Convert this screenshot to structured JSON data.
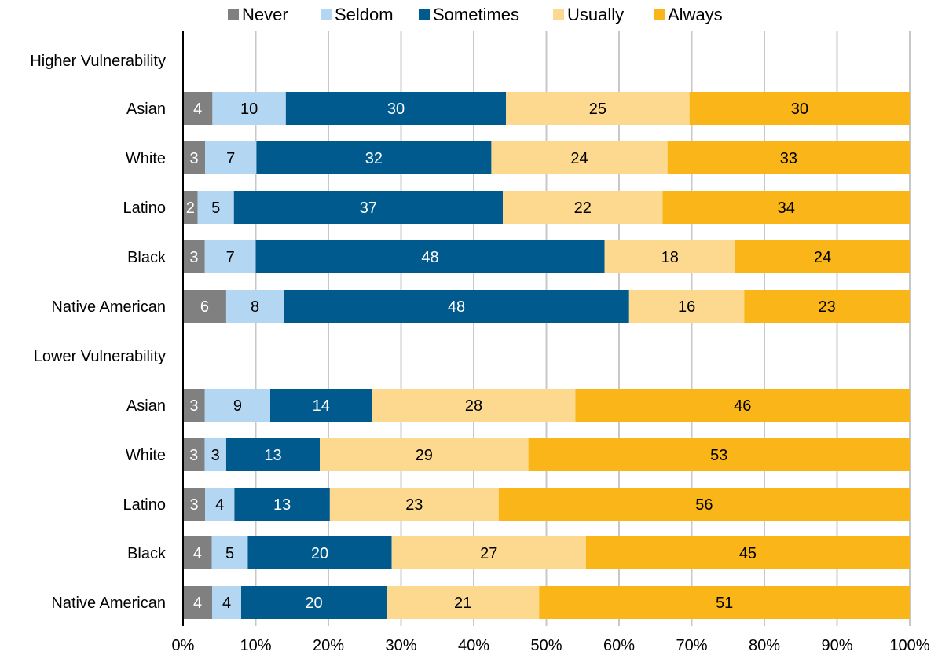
{
  "chart_data": {
    "type": "bar",
    "orientation": "horizontal",
    "stacked": true,
    "normalized": true,
    "legend_position": "top",
    "grid": true,
    "xlim": [
      0,
      100
    ],
    "x_ticks": [
      "0%",
      "10%",
      "20%",
      "30%",
      "40%",
      "50%",
      "60%",
      "70%",
      "80%",
      "90%",
      "100%"
    ],
    "groups": [
      "Higher Vulnerability",
      "Lower Vulnerability"
    ],
    "categories": [
      "Asian",
      "White",
      "Latino",
      "Black",
      "Native American",
      "Asian",
      "White",
      "Latino",
      "Black",
      "Native American"
    ],
    "series": [
      {
        "name": "Never",
        "color": "#808080",
        "label_color": "#ffffff",
        "values": [
          4,
          3,
          2,
          3,
          6,
          3,
          3,
          3,
          4,
          4
        ]
      },
      {
        "name": "Seldom",
        "color": "#b3d7f2",
        "label_color": "#000000",
        "values": [
          10,
          7,
          5,
          7,
          8,
          9,
          3,
          4,
          5,
          4
        ]
      },
      {
        "name": "Sometimes",
        "color": "#005a8e",
        "label_color": "#ffffff",
        "values": [
          30,
          32,
          37,
          48,
          48,
          14,
          13,
          13,
          20,
          20
        ]
      },
      {
        "name": "Usually",
        "color": "#fcd98f",
        "label_color": "#000000",
        "values": [
          25,
          24,
          22,
          18,
          16,
          28,
          29,
          23,
          27,
          21
        ]
      },
      {
        "name": "Always",
        "color": "#fab618",
        "label_color": "#000000",
        "values": [
          30,
          33,
          34,
          24,
          23,
          46,
          53,
          56,
          45,
          51
        ]
      }
    ]
  }
}
